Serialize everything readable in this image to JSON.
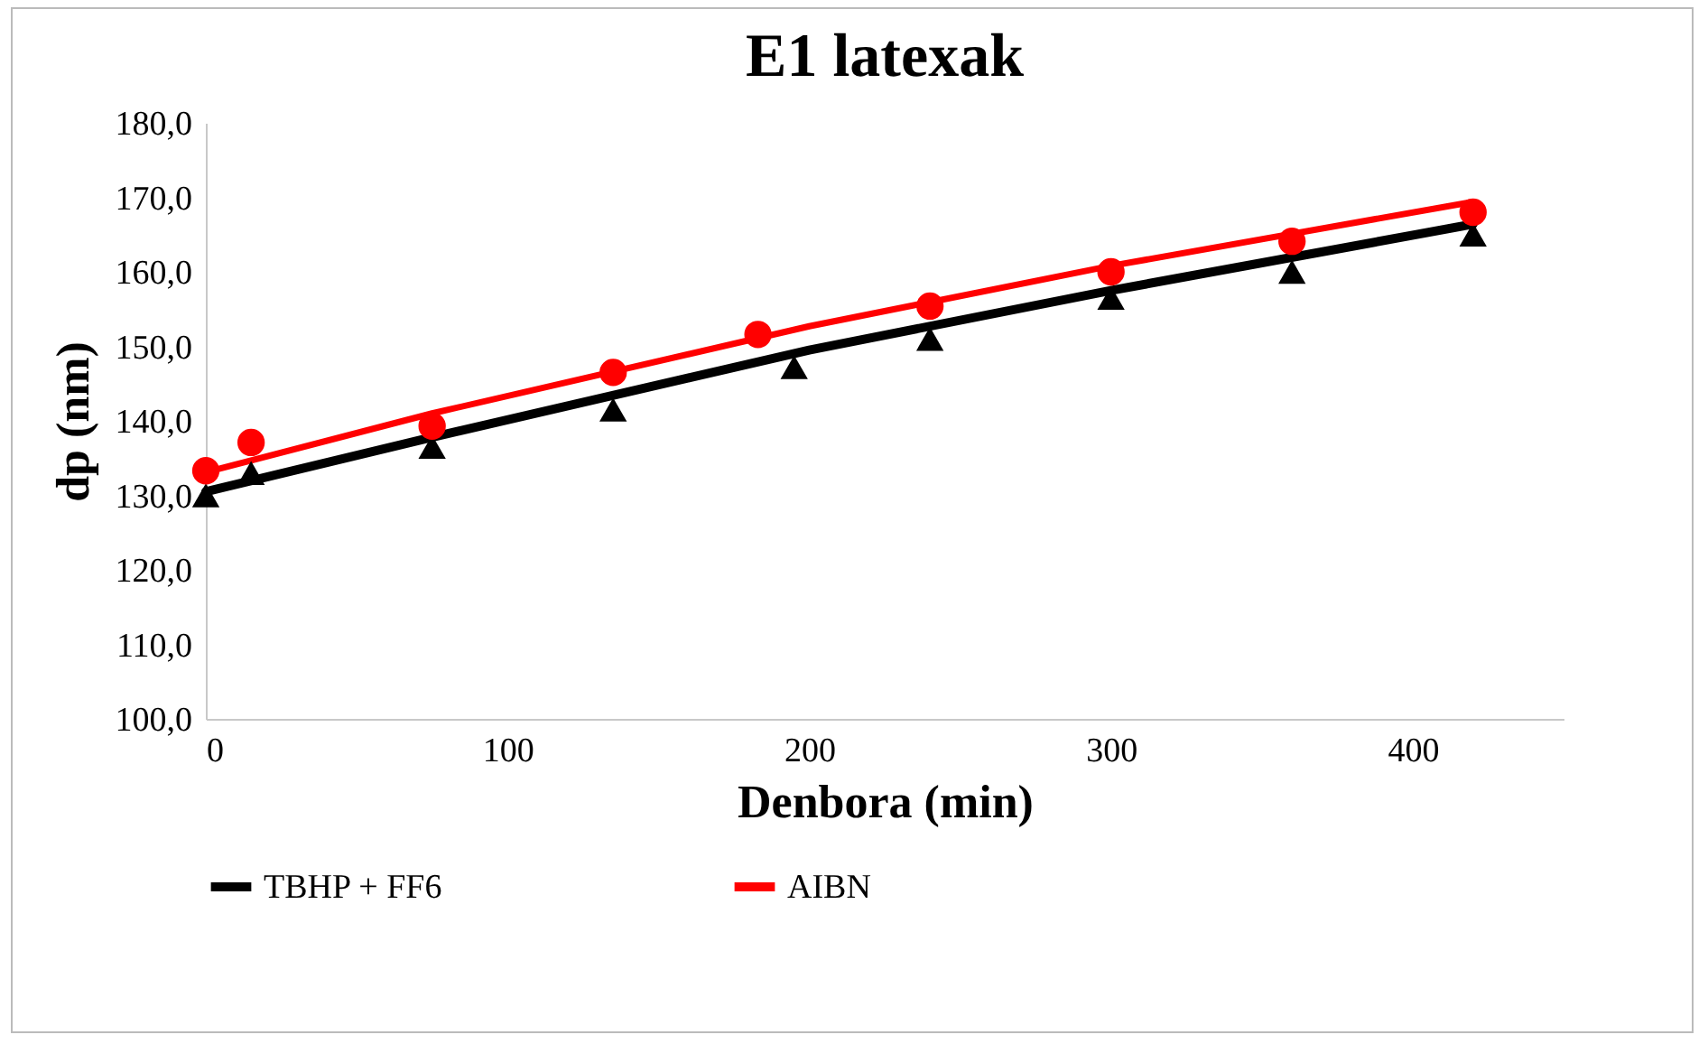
{
  "chart_data": {
    "type": "scatter",
    "title": "E1 latexak",
    "xlabel": "Denbora (min)",
    "ylabel": "dp (nm)",
    "series": [
      {
        "marker": "triangle",
        "color": "#000000",
        "x": [
          0,
          15,
          75,
          135,
          195,
          240,
          300,
          360,
          420
        ],
        "values": [
          130.0,
          133.0,
          136.5,
          141.5,
          147.2,
          151.0,
          156.5,
          160.0,
          165.0
        ]
      },
      {
        "marker": "circle",
        "color": "#ff0000",
        "x": [
          0,
          15,
          75,
          135,
          183,
          240,
          300,
          360,
          420
        ],
        "values": [
          133.3,
          137.1,
          139.3,
          146.5,
          151.6,
          155.4,
          160.0,
          164.1,
          168.0
        ]
      },
      {
        "type": "line",
        "name": "TBHP + FF6",
        "marker": "none",
        "color": "#000000",
        "x": [
          0,
          75,
          200,
          300,
          420
        ],
        "values": [
          130.5,
          137.8,
          149.5,
          157.5,
          166.4
        ]
      },
      {
        "type": "line",
        "name": "AIBN",
        "marker": "none",
        "color": "#ff0000",
        "x": [
          0,
          75,
          200,
          300,
          420
        ],
        "values": [
          133.1,
          141.0,
          152.7,
          160.8,
          169.4
        ]
      }
    ],
    "xlim": [
      0,
      450
    ],
    "xticks": [
      0,
      100,
      200,
      300,
      400
    ],
    "ylim": [
      100,
      180
    ],
    "yticks": [
      {
        "value": 100,
        "label": "100,0"
      },
      {
        "value": 110,
        "label": "110,0"
      },
      {
        "value": 120,
        "label": "120,0"
      },
      {
        "value": 130,
        "label": "130,0"
      },
      {
        "value": 140,
        "label": "140,0"
      },
      {
        "value": 150,
        "label": "150,0"
      },
      {
        "value": 160,
        "label": "160,0"
      },
      {
        "value": 170,
        "label": "170,0"
      },
      {
        "value": 180,
        "label": "180,0"
      }
    ],
    "grid": false,
    "legend": "bottom"
  }
}
